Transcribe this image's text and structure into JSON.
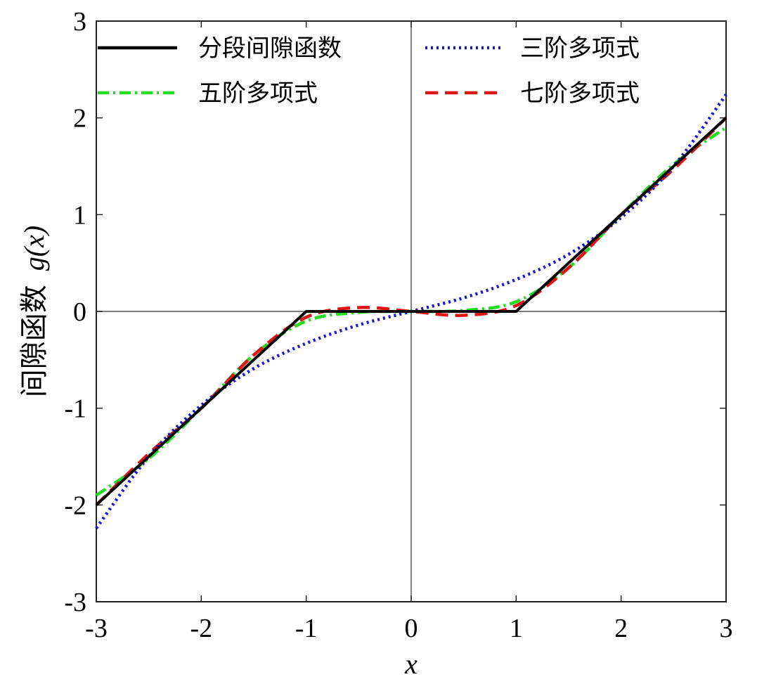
{
  "chart_data": {
    "type": "line",
    "title": "",
    "xlabel": "x",
    "ylabel": "间隙函数 g(x)",
    "ylabel_prefix": "间隙函数",
    "ylabel_var": "g(x)",
    "xlim": [
      -3,
      3
    ],
    "ylim": [
      -3,
      3
    ],
    "xticks": [
      -3,
      -2,
      -1,
      0,
      1,
      2,
      3
    ],
    "yticks": [
      -3,
      -2,
      -1,
      0,
      1,
      2,
      3
    ],
    "xtick_labels": [
      "-3",
      "-2",
      "-1",
      "0",
      "1",
      "2",
      "3"
    ],
    "ytick_labels": [
      "-3",
      "-2",
      "-1",
      "0",
      "1",
      "2",
      "3"
    ],
    "grid": false,
    "reference_lines": [
      "x = 0",
      "y = 0"
    ],
    "legend_position": "top",
    "legend_columns": 2,
    "series": [
      {
        "name": "分段间隙函数",
        "color": "#000000",
        "style": "solid",
        "x": [
          -3,
          -1,
          1,
          3
        ],
        "y": [
          -2,
          0,
          0,
          2
        ]
      },
      {
        "name": "三阶多项式",
        "color": "#1515d8",
        "style": "dotted",
        "x": [
          -3,
          -2.5,
          -2,
          -1.5,
          -1,
          -0.5,
          0,
          0.5,
          1,
          1.5,
          2,
          2.5,
          3
        ],
        "y": [
          -2.24,
          -1.5,
          -0.97,
          -0.59,
          -0.33,
          -0.14,
          0,
          0.14,
          0.33,
          0.59,
          0.97,
          1.5,
          2.24
        ]
      },
      {
        "name": "五阶多项式",
        "color": "#22dd22",
        "style": "dashdot",
        "x": [
          -3,
          -2.5,
          -2,
          -1.5,
          -1,
          -0.5,
          0,
          0.5,
          1,
          1.5,
          2,
          2.5,
          3
        ],
        "y": [
          -1.9,
          -1.52,
          -1.0,
          -0.45,
          -0.1,
          -0.01,
          0,
          0.01,
          0.1,
          0.45,
          1.0,
          1.52,
          1.9
        ]
      },
      {
        "name": "七阶多项式",
        "color": "#dd1515",
        "style": "dashed",
        "x": [
          -3,
          -2.5,
          -2,
          -1.5,
          -1,
          -0.5,
          0,
          0.5,
          1,
          1.5,
          2,
          2.5,
          3
        ],
        "y": [
          -2.0,
          -1.47,
          -1.0,
          -0.45,
          -0.06,
          0.04,
          0,
          -0.04,
          0.06,
          0.45,
          1.0,
          1.47,
          2.0
        ]
      }
    ]
  }
}
